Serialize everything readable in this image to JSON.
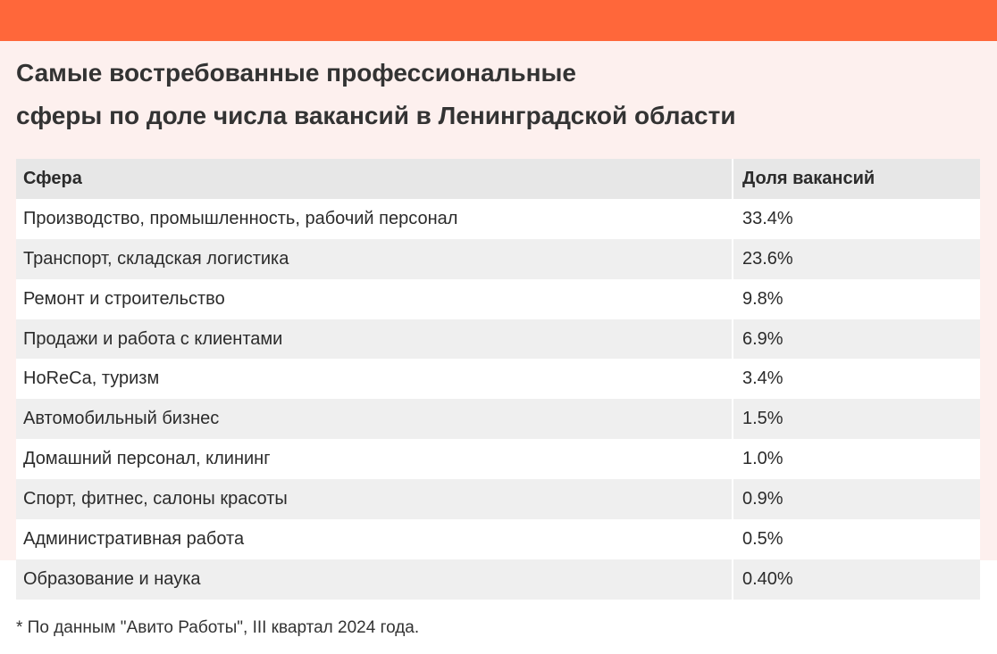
{
  "header": {
    "title_lines": [
      "Самые востребованные профессиональные",
      "сферы по доле числа вакансий в Ленинградской области"
    ]
  },
  "table": {
    "columns": [
      "Сфера",
      "Доля вакансий"
    ],
    "rows": [
      [
        "Производство, промышленность, рабочий персонал",
        "33.4%"
      ],
      [
        "Транспорт, складская логистика",
        "23.6%"
      ],
      [
        "Ремонт и строительство",
        "9.8%"
      ],
      [
        "Продажи и работа с клиентами",
        "6.9%"
      ],
      [
        "HoReCa, туризм",
        "3.4%"
      ],
      [
        "Автомобильный бизнес",
        "1.5%"
      ],
      [
        "Домашний персонал, клининг",
        "1.0%"
      ],
      [
        "Спорт, фитнес, салоны красоты",
        "0.9%"
      ],
      [
        "Административная работа",
        "0.5%"
      ],
      [
        "Образование и наука",
        "0.40%"
      ]
    ]
  },
  "footnote": "* По данным \"Авито Работы\", III квартал 2024 года."
}
